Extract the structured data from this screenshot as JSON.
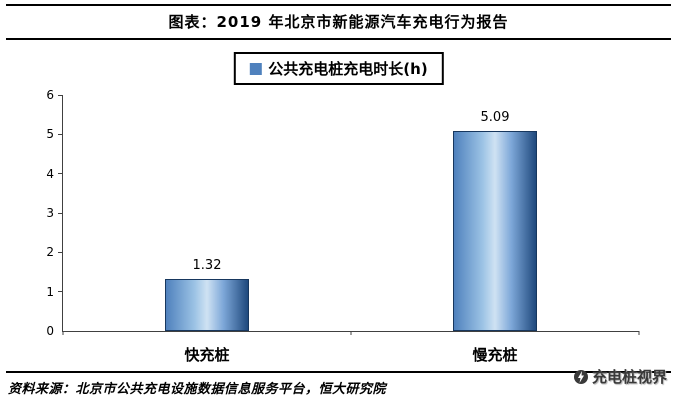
{
  "header": {
    "title": "图表：2019 年北京市新能源汽车充电行为报告"
  },
  "legend": {
    "label": "公共充电桩充电时长(h)",
    "marker_color": "#4f81bd"
  },
  "chart_data": {
    "type": "bar",
    "title": "公共充电桩充电时长(h)",
    "categories": [
      "快充桩",
      "慢充桩"
    ],
    "values": [
      1.32,
      5.09
    ],
    "value_labels": [
      "1.32",
      "5.09"
    ],
    "xlabel": "",
    "ylabel": "",
    "ylim": [
      0,
      6
    ],
    "yticks": [
      0,
      1,
      2,
      3,
      4,
      5,
      6
    ],
    "grid": false,
    "legend_position": "top-center",
    "bar_border_color": "#17375e",
    "bar_fill_light": "#cfe2f3",
    "bar_fill_dark": "#1f497d"
  },
  "footer": {
    "source": "资料来源：北京市公共充电设施数据信息服务平台，恒大研究院"
  },
  "watermark": {
    "label": "充电桩视界"
  }
}
